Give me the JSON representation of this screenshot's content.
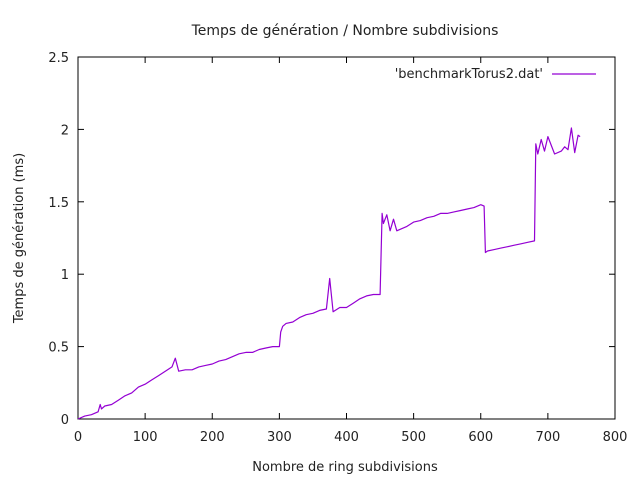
{
  "chart_data": {
    "type": "line",
    "title": "Temps de génération / Nombre subdivisions",
    "xlabel": "Nombre de ring subdivisions",
    "ylabel": "Temps de génération (ms)",
    "xlim": [
      0,
      800
    ],
    "ylim": [
      0,
      2.5
    ],
    "xticks": [
      "0",
      "100",
      "200",
      "300",
      "400",
      "500",
      "600",
      "700",
      "800"
    ],
    "yticks": [
      "0",
      "0.5",
      "1",
      "1.5",
      "2",
      "2.5"
    ],
    "grid": false,
    "legend_position": "top-right",
    "series": [
      {
        "name": "'benchmarkTorus2.dat'",
        "color": "#9400d3",
        "x": [
          0,
          10,
          20,
          30,
          33,
          35,
          40,
          50,
          60,
          70,
          80,
          90,
          100,
          110,
          120,
          130,
          140,
          145,
          150,
          160,
          170,
          180,
          190,
          200,
          210,
          220,
          230,
          240,
          250,
          260,
          270,
          280,
          290,
          300,
          302,
          305,
          310,
          320,
          330,
          340,
          350,
          360,
          370,
          375,
          380,
          390,
          400,
          410,
          420,
          430,
          440,
          450,
          453,
          455,
          460,
          465,
          470,
          475,
          480,
          490,
          500,
          510,
          520,
          530,
          540,
          550,
          560,
          570,
          580,
          590,
          600,
          605,
          607,
          610,
          620,
          630,
          640,
          650,
          660,
          670,
          680,
          682,
          685,
          690,
          695,
          700,
          710,
          720,
          725,
          730,
          735,
          740,
          745,
          748
        ],
        "y": [
          0.0,
          0.02,
          0.03,
          0.05,
          0.1,
          0.07,
          0.09,
          0.1,
          0.13,
          0.16,
          0.18,
          0.22,
          0.24,
          0.27,
          0.3,
          0.33,
          0.36,
          0.42,
          0.33,
          0.34,
          0.34,
          0.36,
          0.37,
          0.38,
          0.4,
          0.41,
          0.43,
          0.45,
          0.46,
          0.46,
          0.48,
          0.49,
          0.5,
          0.5,
          0.6,
          0.64,
          0.66,
          0.67,
          0.7,
          0.72,
          0.73,
          0.75,
          0.76,
          0.97,
          0.74,
          0.77,
          0.77,
          0.8,
          0.83,
          0.85,
          0.86,
          0.86,
          1.42,
          1.35,
          1.41,
          1.3,
          1.38,
          1.3,
          1.31,
          1.33,
          1.36,
          1.37,
          1.39,
          1.4,
          1.42,
          1.42,
          1.43,
          1.44,
          1.45,
          1.46,
          1.48,
          1.47,
          1.15,
          1.16,
          1.17,
          1.18,
          1.19,
          1.2,
          1.21,
          1.22,
          1.23,
          1.9,
          1.83,
          1.93,
          1.85,
          1.95,
          1.83,
          1.85,
          1.88,
          1.86,
          2.01,
          1.84,
          1.96,
          1.95
        ]
      }
    ]
  }
}
